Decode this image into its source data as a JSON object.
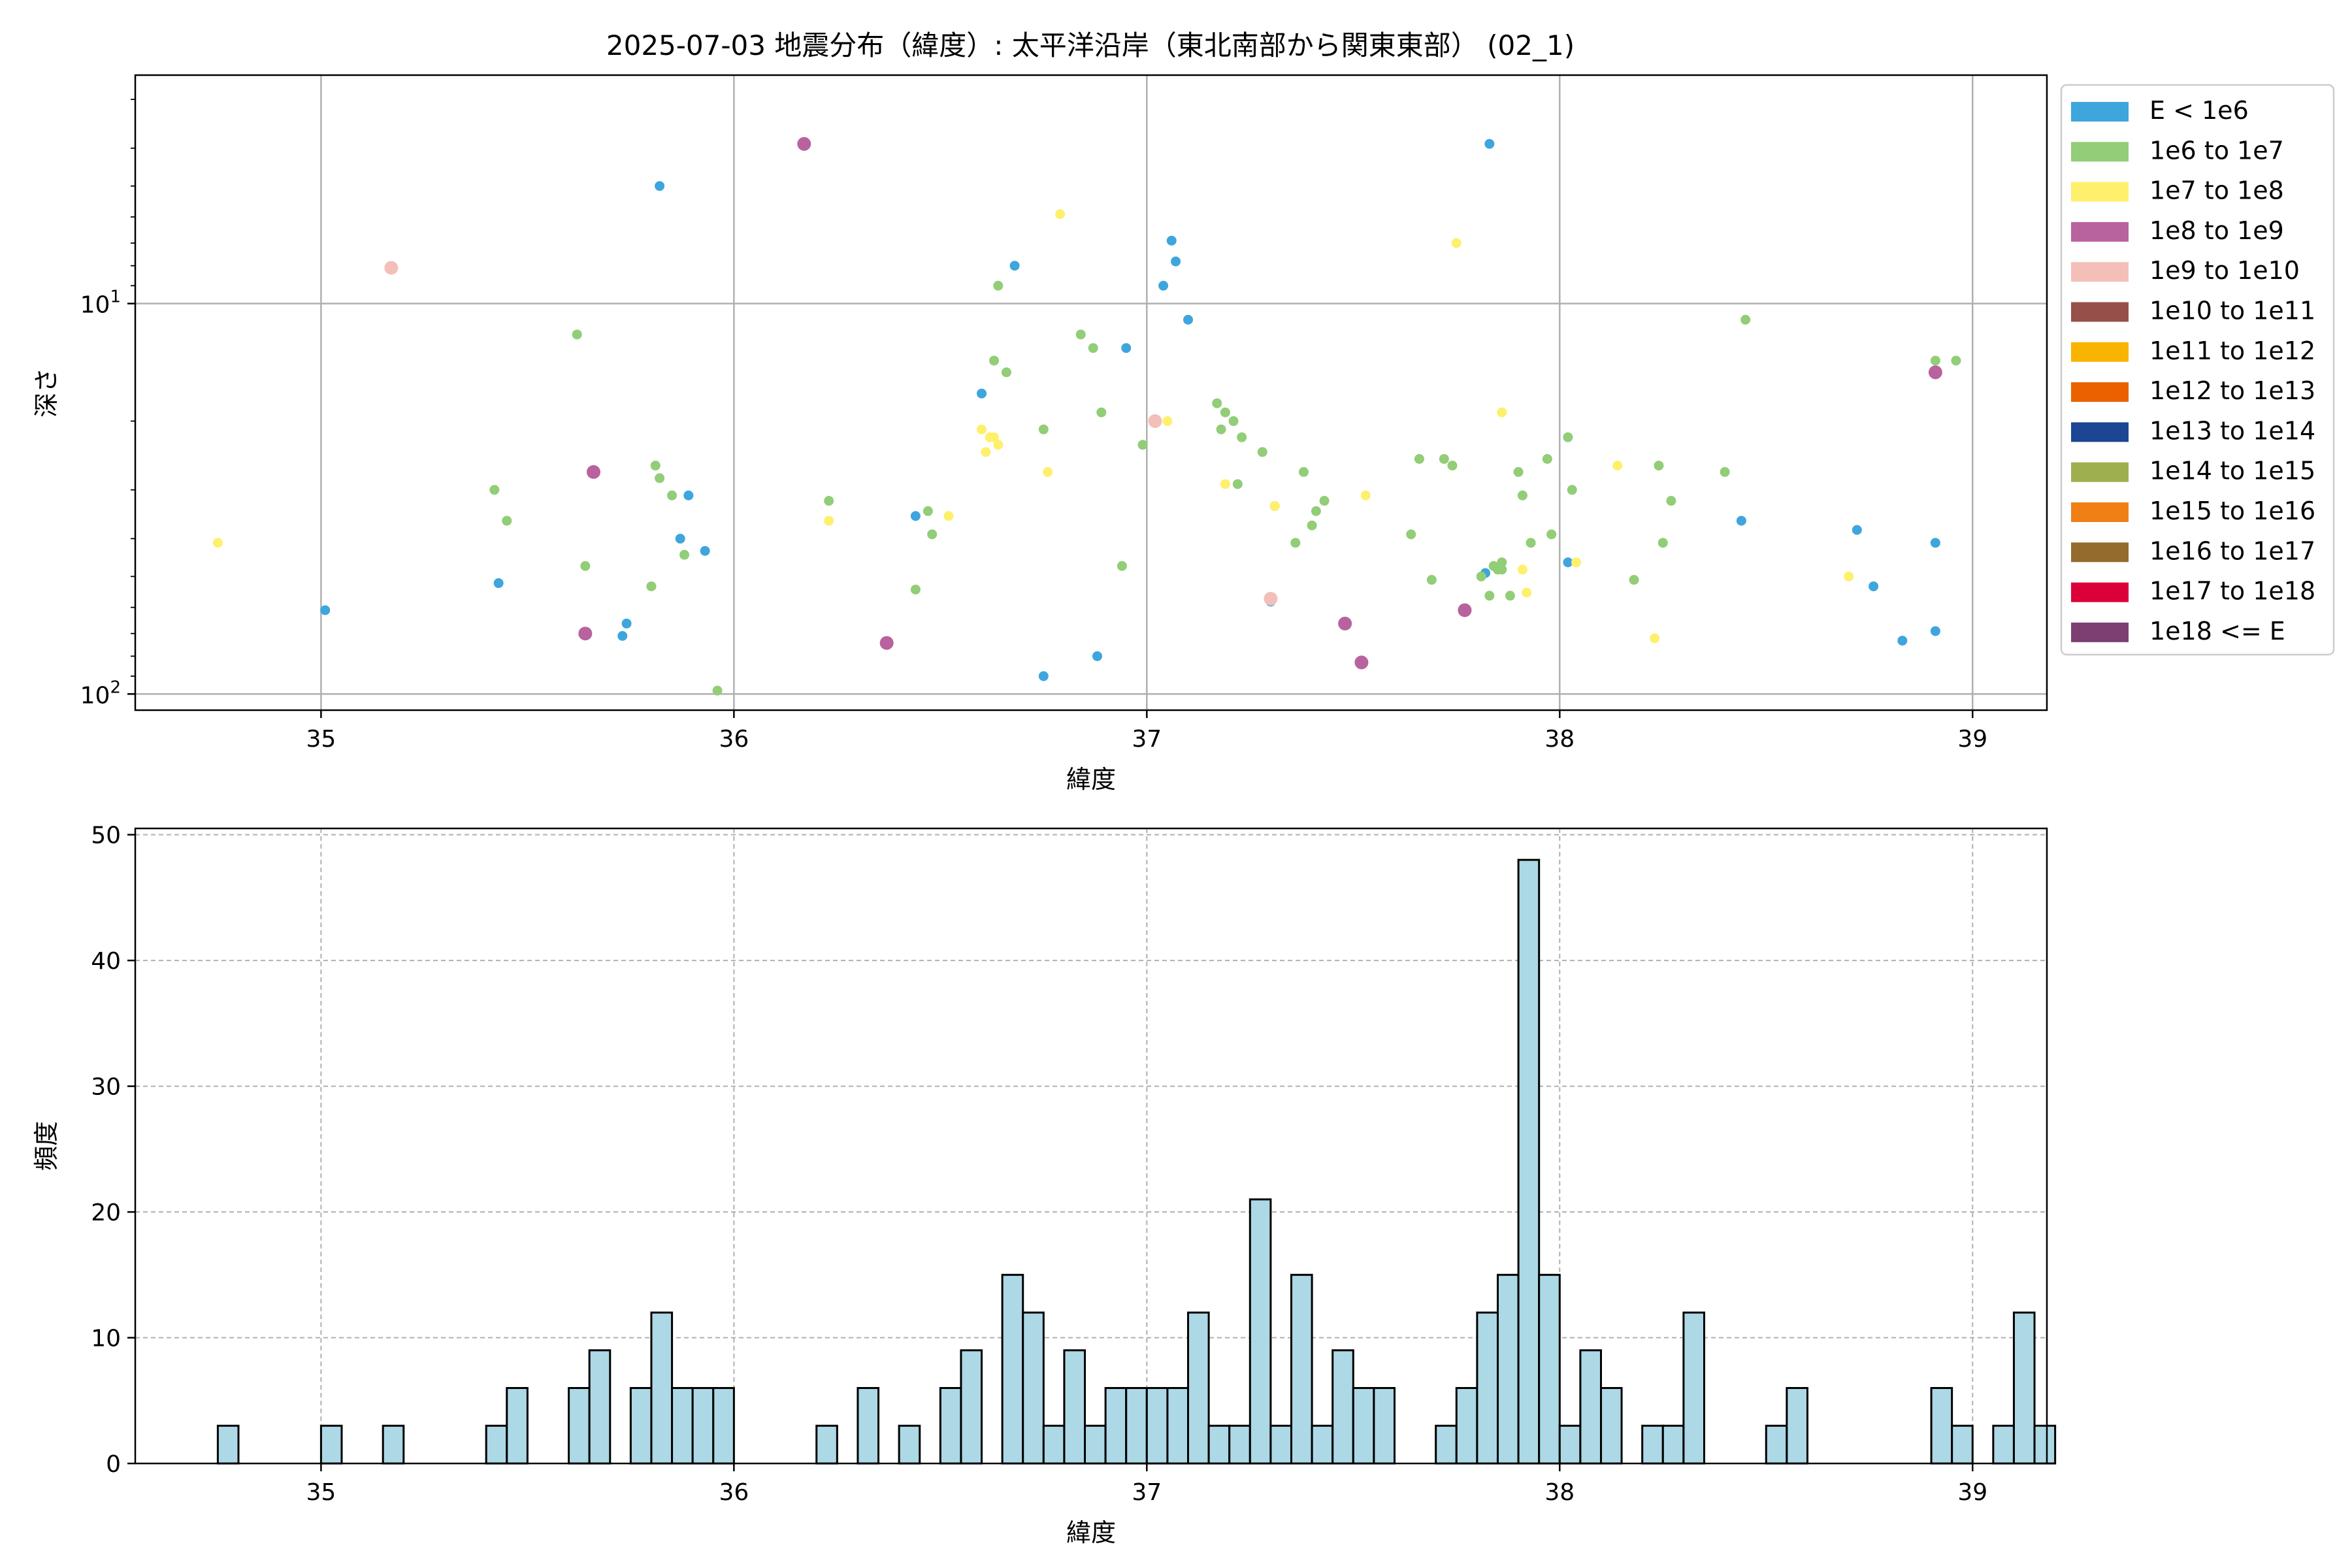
{
  "chart_data": [
    {
      "type": "scatter",
      "title": "2025-07-03 地震分布（緯度）: 太平洋沿岸（東北南部から関東東部） (02_1)",
      "xlabel": "緯度",
      "ylabel": "深さ",
      "xlim": [
        34.55,
        39.18
      ],
      "ylim": [
        110,
        2.6
      ],
      "y_scale": "log",
      "y_inverted": true,
      "grid": true,
      "x_ticks": [
        35,
        36,
        37,
        38,
        39
      ],
      "y_ticks": [
        {
          "value": 10,
          "label": "10",
          "exp": "1"
        },
        {
          "value": 100,
          "label": "10",
          "exp": "2"
        }
      ],
      "legend": {
        "placement": "outside-right",
        "entries": [
          {
            "label": "E < 1e6",
            "color": "#3ea5dd"
          },
          {
            "label": "1e6 to 1e7",
            "color": "#92cd77"
          },
          {
            "label": "1e7 to 1e8",
            "color": "#fef06c"
          },
          {
            "label": "1e8 to 1e9",
            "color": "#b8629e"
          },
          {
            "label": "1e9 to 1e10",
            "color": "#f4bfb9"
          },
          {
            "label": "1e10 to 1e11",
            "color": "#965049"
          },
          {
            "label": "1e11 to 1e12",
            "color": "#f9b400"
          },
          {
            "label": "1e12 to 1e13",
            "color": "#eb6100"
          },
          {
            "label": "1e13 to 1e14",
            "color": "#1c4593"
          },
          {
            "label": "1e14 to 1e15",
            "color": "#9eaf4f"
          },
          {
            "label": "1e15 to 1e16",
            "color": "#f07f16"
          },
          {
            "label": "1e16 to 1e17",
            "color": "#946b2d"
          },
          {
            "label": "1e17 to 1e18",
            "color": "#dc0038"
          },
          {
            "label": "1e18 <= E",
            "color": "#7d3f72"
          }
        ]
      },
      "series": [
        {
          "class": 0,
          "points": [
            [
              35.01,
              61
            ],
            [
              35.43,
              52
            ],
            [
              35.73,
              71
            ],
            [
              35.74,
              66
            ],
            [
              35.82,
              5
            ],
            [
              35.87,
              40
            ],
            [
              35.89,
              31
            ],
            [
              35.93,
              43
            ],
            [
              36.44,
              35
            ],
            [
              36.6,
              17
            ],
            [
              36.68,
              8
            ],
            [
              36.75,
              90
            ],
            [
              36.88,
              80
            ],
            [
              36.95,
              13
            ],
            [
              37.04,
              9
            ],
            [
              37.06,
              6.9
            ],
            [
              37.07,
              7.8
            ],
            [
              37.1,
              11
            ],
            [
              37.3,
              58
            ],
            [
              37.82,
              49
            ],
            [
              37.83,
              3.9
            ],
            [
              38.02,
              46
            ],
            [
              38.44,
              36
            ],
            [
              38.72,
              38
            ],
            [
              38.76,
              53
            ],
            [
              38.83,
              73
            ],
            [
              38.91,
              41
            ],
            [
              38.91,
              69
            ]
          ]
        },
        {
          "class": 1,
          "points": [
            [
              35.42,
              30
            ],
            [
              35.45,
              36
            ],
            [
              35.62,
              12
            ],
            [
              35.64,
              47
            ],
            [
              35.8,
              53
            ],
            [
              35.81,
              26
            ],
            [
              35.82,
              28
            ],
            [
              35.85,
              31
            ],
            [
              35.88,
              44
            ],
            [
              35.96,
              98
            ],
            [
              36.23,
              32
            ],
            [
              36.47,
              34
            ],
            [
              36.48,
              39
            ],
            [
              36.44,
              54
            ],
            [
              36.63,
              14
            ],
            [
              36.64,
              9
            ],
            [
              36.66,
              15
            ],
            [
              36.75,
              21
            ],
            [
              36.84,
              12
            ],
            [
              36.87,
              13
            ],
            [
              36.89,
              19
            ],
            [
              36.94,
              47
            ],
            [
              36.99,
              23
            ],
            [
              37.17,
              18
            ],
            [
              37.18,
              21
            ],
            [
              37.19,
              19
            ],
            [
              37.21,
              20
            ],
            [
              37.22,
              29
            ],
            [
              37.23,
              22
            ],
            [
              37.28,
              24
            ],
            [
              37.31,
              33
            ],
            [
              37.36,
              41
            ],
            [
              37.38,
              27
            ],
            [
              37.4,
              37
            ],
            [
              37.41,
              34
            ],
            [
              37.43,
              32
            ],
            [
              37.64,
              39
            ],
            [
              37.66,
              25
            ],
            [
              37.69,
              51
            ],
            [
              37.72,
              25
            ],
            [
              37.74,
              26
            ],
            [
              37.81,
              50
            ],
            [
              37.83,
              56
            ],
            [
              37.84,
              47
            ],
            [
              37.85,
              48
            ],
            [
              37.86,
              48
            ],
            [
              37.86,
              46
            ],
            [
              37.88,
              56
            ],
            [
              37.9,
              27
            ],
            [
              37.91,
              31
            ],
            [
              37.93,
              41
            ],
            [
              37.97,
              25
            ],
            [
              37.98,
              39
            ],
            [
              38.02,
              22
            ],
            [
              38.03,
              30
            ],
            [
              38.18,
              51
            ],
            [
              38.24,
              26
            ],
            [
              38.25,
              41
            ],
            [
              38.27,
              32
            ],
            [
              38.4,
              27
            ],
            [
              38.45,
              11
            ],
            [
              38.91,
              14
            ],
            [
              38.96,
              14
            ]
          ]
        },
        {
          "class": 2,
          "points": [
            [
              34.75,
              41
            ],
            [
              36.23,
              36
            ],
            [
              36.52,
              35
            ],
            [
              36.6,
              21
            ],
            [
              36.61,
              24
            ],
            [
              36.62,
              22
            ],
            [
              36.63,
              22
            ],
            [
              36.64,
              23
            ],
            [
              36.76,
              27
            ],
            [
              36.79,
              5.9
            ],
            [
              37.05,
              20
            ],
            [
              37.19,
              29
            ],
            [
              37.31,
              33
            ],
            [
              37.53,
              31
            ],
            [
              37.75,
              7
            ],
            [
              37.86,
              19
            ],
            [
              37.91,
              48
            ],
            [
              37.92,
              55
            ],
            [
              38.04,
              46
            ],
            [
              38.14,
              26
            ],
            [
              38.23,
              72
            ],
            [
              38.7,
              50
            ]
          ]
        },
        {
          "class": 3,
          "points": [
            [
              36.17,
              3.9
            ],
            [
              35.66,
              27
            ],
            [
              35.64,
              70
            ],
            [
              36.37,
              74
            ],
            [
              37.48,
              66
            ],
            [
              37.52,
              83
            ],
            [
              37.77,
              61
            ],
            [
              38.91,
              15
            ]
          ]
        },
        {
          "class": 4,
          "points": [
            [
              35.17,
              8.1
            ],
            [
              37.02,
              20
            ],
            [
              37.3,
              57
            ]
          ]
        }
      ]
    },
    {
      "type": "bar",
      "xlabel": "緯度",
      "ylabel": "頻度",
      "xlim": [
        34.55,
        39.18
      ],
      "ylim": [
        0,
        50.5
      ],
      "grid": true,
      "x_ticks": [
        35,
        36,
        37,
        38,
        39
      ],
      "y_ticks": [
        0,
        10,
        20,
        30,
        40,
        50
      ],
      "bar_color": "#add8e6",
      "bin_start": 34.75,
      "bin_width": 0.05,
      "values": [
        3,
        0,
        0,
        0,
        0,
        3,
        0,
        0,
        3,
        0,
        0,
        0,
        0,
        3,
        6,
        0,
        0,
        6,
        9,
        0,
        6,
        12,
        6,
        6,
        6,
        0,
        0,
        0,
        0,
        3,
        0,
        6,
        0,
        3,
        0,
        6,
        9,
        0,
        15,
        12,
        3,
        9,
        3,
        6,
        6,
        6,
        6,
        12,
        3,
        3,
        21,
        3,
        15,
        3,
        9,
        6,
        6,
        0,
        0,
        3,
        6,
        12,
        15,
        48,
        15,
        3,
        9,
        6,
        0,
        3,
        3,
        12,
        0,
        0,
        0,
        3,
        6,
        0,
        0,
        0,
        0,
        0,
        0,
        6,
        3,
        0,
        3,
        12,
        3
      ]
    }
  ]
}
